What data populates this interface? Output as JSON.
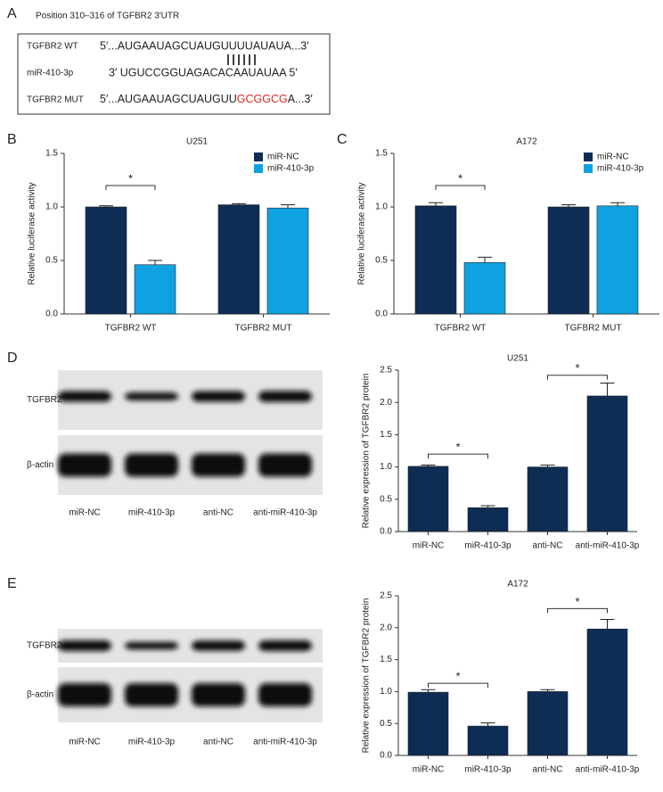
{
  "panel_labels": [
    "A",
    "B",
    "C",
    "D",
    "E"
  ],
  "sequence": {
    "title": "Position 310–316 of TGFBR2 3′UTR",
    "wt_label": "TGFBR2 WT",
    "wt_seq": "5′...AUGAAUAGCUAUGUUUUAUAUA...3′",
    "mir_label": "miR-410-3p",
    "mir_seq": "3′ UGUCCGGUAGACACAAUAUAA 5′",
    "mut_label": "TGFBR2 MUT",
    "mut_seq": [
      "5′...AUGAAUAGCUAUGUU",
      "GCGGCG",
      "A...3′"
    ],
    "mut_color": "#d8262a"
  },
  "blots": [
    {
      "row_labels": [
        "TGFBR2",
        "β-actin"
      ],
      "lanes": [
        "miR-NC",
        "miR-410-3p",
        "anti-NC",
        "anti-miR-410-3p"
      ]
    },
    {
      "row_labels": [
        "TGFBR2",
        "β-actin"
      ],
      "lanes": [
        "miR-NC",
        "miR-410-3p",
        "anti-NC",
        "anti-miR-410-3p"
      ]
    }
  ],
  "chart_data": [
    {
      "type": "bar",
      "title": "U251",
      "y_label": "Relative luciferase activity",
      "categories": [
        "TGFBR2 WT",
        "TGFBR2 MUT"
      ],
      "series": [
        {
          "name": "miR-NC",
          "color": "#0d2d55",
          "values": [
            1.0,
            1.02
          ],
          "errors": [
            0.01,
            0.01
          ]
        },
        {
          "name": "miR-410-3p",
          "color": "#0ea3e0",
          "values": [
            0.46,
            0.99
          ],
          "errors": [
            0.04,
            0.03
          ]
        }
      ],
      "ylim": [
        0,
        1.5
      ],
      "yticks": [
        {
          "value": 0,
          "label": "0.0"
        },
        0.5,
        {
          "value": 1,
          "label": "1.0"
        },
        1.5
      ],
      "annotations": [
        {
          "text": "*",
          "y": 1.2
        }
      ],
      "legend": "top-right"
    },
    {
      "type": "bar",
      "title": "A172",
      "y_label": "Relative luciferase activity",
      "categories": [
        "TGFBR2 WT",
        "TGFBR2 MUT"
      ],
      "series": [
        {
          "name": "miR-NC",
          "color": "#0d2d55",
          "values": [
            1.01,
            1.0
          ],
          "errors": [
            0.03,
            0.02
          ]
        },
        {
          "name": "miR-410-3p",
          "color": "#0ea3e0",
          "values": [
            0.48,
            1.01
          ],
          "errors": [
            0.05,
            0.03
          ]
        }
      ],
      "ylim": [
        0,
        1.5
      ],
      "yticks": [
        {
          "value": 0,
          "label": "0.0"
        },
        0.5,
        {
          "value": 1,
          "label": "1.0"
        },
        1.5
      ],
      "annotations": [
        {
          "text": "*",
          "y": 1.2
        }
      ],
      "legend": "top-right"
    },
    {
      "type": "bar",
      "title": "U251",
      "y_label": "Relative expression of TGFBR2 protein",
      "categories": [
        "miR-NC",
        "miR-410-3p",
        "anti-NC",
        "anti-miR-410-3p"
      ],
      "values": [
        1.01,
        0.37,
        1.0,
        2.1
      ],
      "errors": [
        0.02,
        0.03,
        0.03,
        0.2
      ],
      "color": "#0d2d55",
      "ylim": [
        0,
        2.5
      ],
      "yticks": [
        {
          "value": 0,
          "label": "0.0"
        },
        0.5,
        {
          "value": 1,
          "label": "1.0"
        },
        1.5,
        {
          "value": 2,
          "label": "2.0"
        },
        2.5
      ],
      "annotations": [
        {
          "text": "*",
          "y": 1.2
        },
        {
          "text": "*",
          "y": 2.42
        }
      ]
    },
    {
      "type": "bar",
      "title": "A172",
      "y_label": "Relative expression of TGFBR2 protein",
      "categories": [
        "miR-NC",
        "miR-410-3p",
        "anti-NC",
        "anti-miR-410-3p"
      ],
      "values": [
        0.99,
        0.46,
        1.0,
        1.98
      ],
      "errors": [
        0.04,
        0.05,
        0.03,
        0.15
      ],
      "color": "#0d2d55",
      "ylim": [
        0,
        2.5
      ],
      "yticks": [
        {
          "value": 0,
          "label": "0.0"
        },
        0.5,
        {
          "value": 1,
          "label": "1.0"
        },
        1.5,
        {
          "value": 2,
          "label": "2.0"
        },
        2.5
      ],
      "annotations": [
        {
          "text": "*",
          "y": 1.13
        },
        {
          "text": "*",
          "y": 2.3
        }
      ]
    }
  ]
}
